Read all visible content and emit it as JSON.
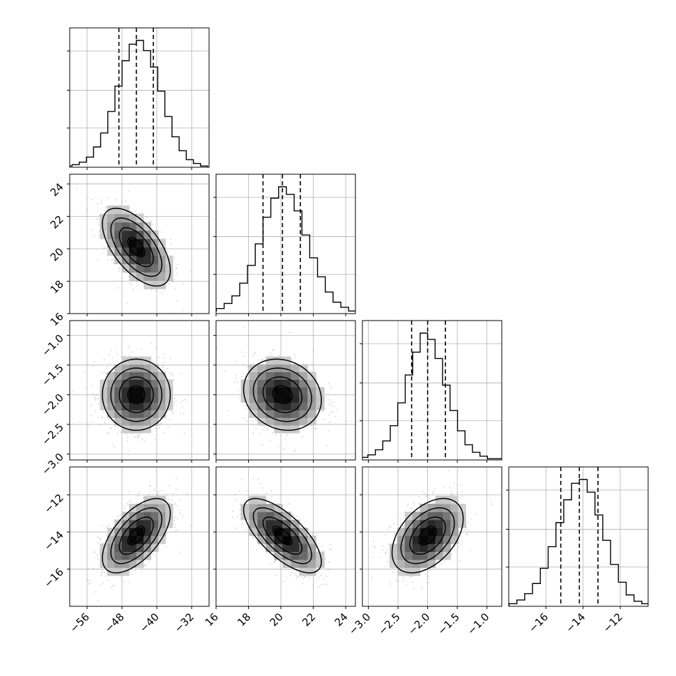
{
  "chart_data": {
    "type": "scatter",
    "plot_kind": "corner",
    "grid": true,
    "quantiles_shown": [
      0.16,
      0.5,
      0.84
    ],
    "colors": {
      "ink": "#000000",
      "grid": "#b0b0b0",
      "scatter_points": "#9a9a9a"
    },
    "parameters": [
      {
        "range": [
          -60,
          -28
        ],
        "ticks": [
          -56,
          -48,
          -40,
          -32
        ],
        "tick_labels": [
          "−56",
          "−48",
          "−40",
          "−32"
        ],
        "median": -44.7,
        "q16": -48.7,
        "q84": -40.8,
        "sigma": 3.9,
        "histogram_counts": [
          1,
          2,
          4,
          8,
          16,
          27,
          44,
          64,
          84,
          97,
          100,
          92,
          79,
          60,
          40,
          24,
          13,
          6,
          3,
          1
        ]
      },
      {
        "range": [
          16,
          24.6
        ],
        "ticks": [
          16,
          18,
          20,
          22,
          24
        ],
        "tick_labels": [
          "16",
          "18",
          "20",
          "22",
          "24"
        ],
        "median": 20.1,
        "q16": 18.9,
        "q84": 21.2,
        "sigma": 1.2,
        "histogram_counts": [
          1,
          2,
          4,
          8,
          14,
          24,
          38,
          55,
          76,
          91,
          100,
          94,
          81,
          62,
          44,
          29,
          17,
          9,
          5,
          2,
          1
        ]
      },
      {
        "range": [
          -3.1,
          -0.75
        ],
        "ticks": [
          -3.0,
          -2.5,
          -2.0,
          -1.5,
          -1.0
        ],
        "tick_labels": [
          "−3.0",
          "−2.5",
          "−2.0",
          "−1.5",
          "−1.0"
        ],
        "median": -2.0,
        "q16": -2.27,
        "q84": -1.7,
        "sigma": 0.3,
        "histogram_counts": [
          1,
          2,
          4,
          8,
          15,
          27,
          45,
          67,
          85,
          100,
          95,
          80,
          59,
          39,
          23,
          12,
          6,
          3,
          1,
          1
        ]
      },
      {
        "range": [
          -18,
          -10.5
        ],
        "ticks": [
          -16,
          -14,
          -12
        ],
        "tick_labels": [
          "−16",
          "−14",
          "−12"
        ],
        "median": -14.2,
        "q16": -15.2,
        "q84": -13.2,
        "sigma": 1.0,
        "histogram_counts": [
          1,
          2,
          5,
          10,
          18,
          30,
          47,
          66,
          84,
          97,
          100,
          90,
          72,
          52,
          33,
          19,
          9,
          4,
          2,
          1
        ]
      }
    ],
    "correlations": [
      [
        1,
        -0.6,
        0.0,
        0.6
      ],
      [
        -0.6,
        1,
        -0.15,
        -0.7
      ],
      [
        0.0,
        -0.15,
        1,
        0.45
      ],
      [
        0.6,
        -0.7,
        0.45,
        1
      ]
    ]
  }
}
